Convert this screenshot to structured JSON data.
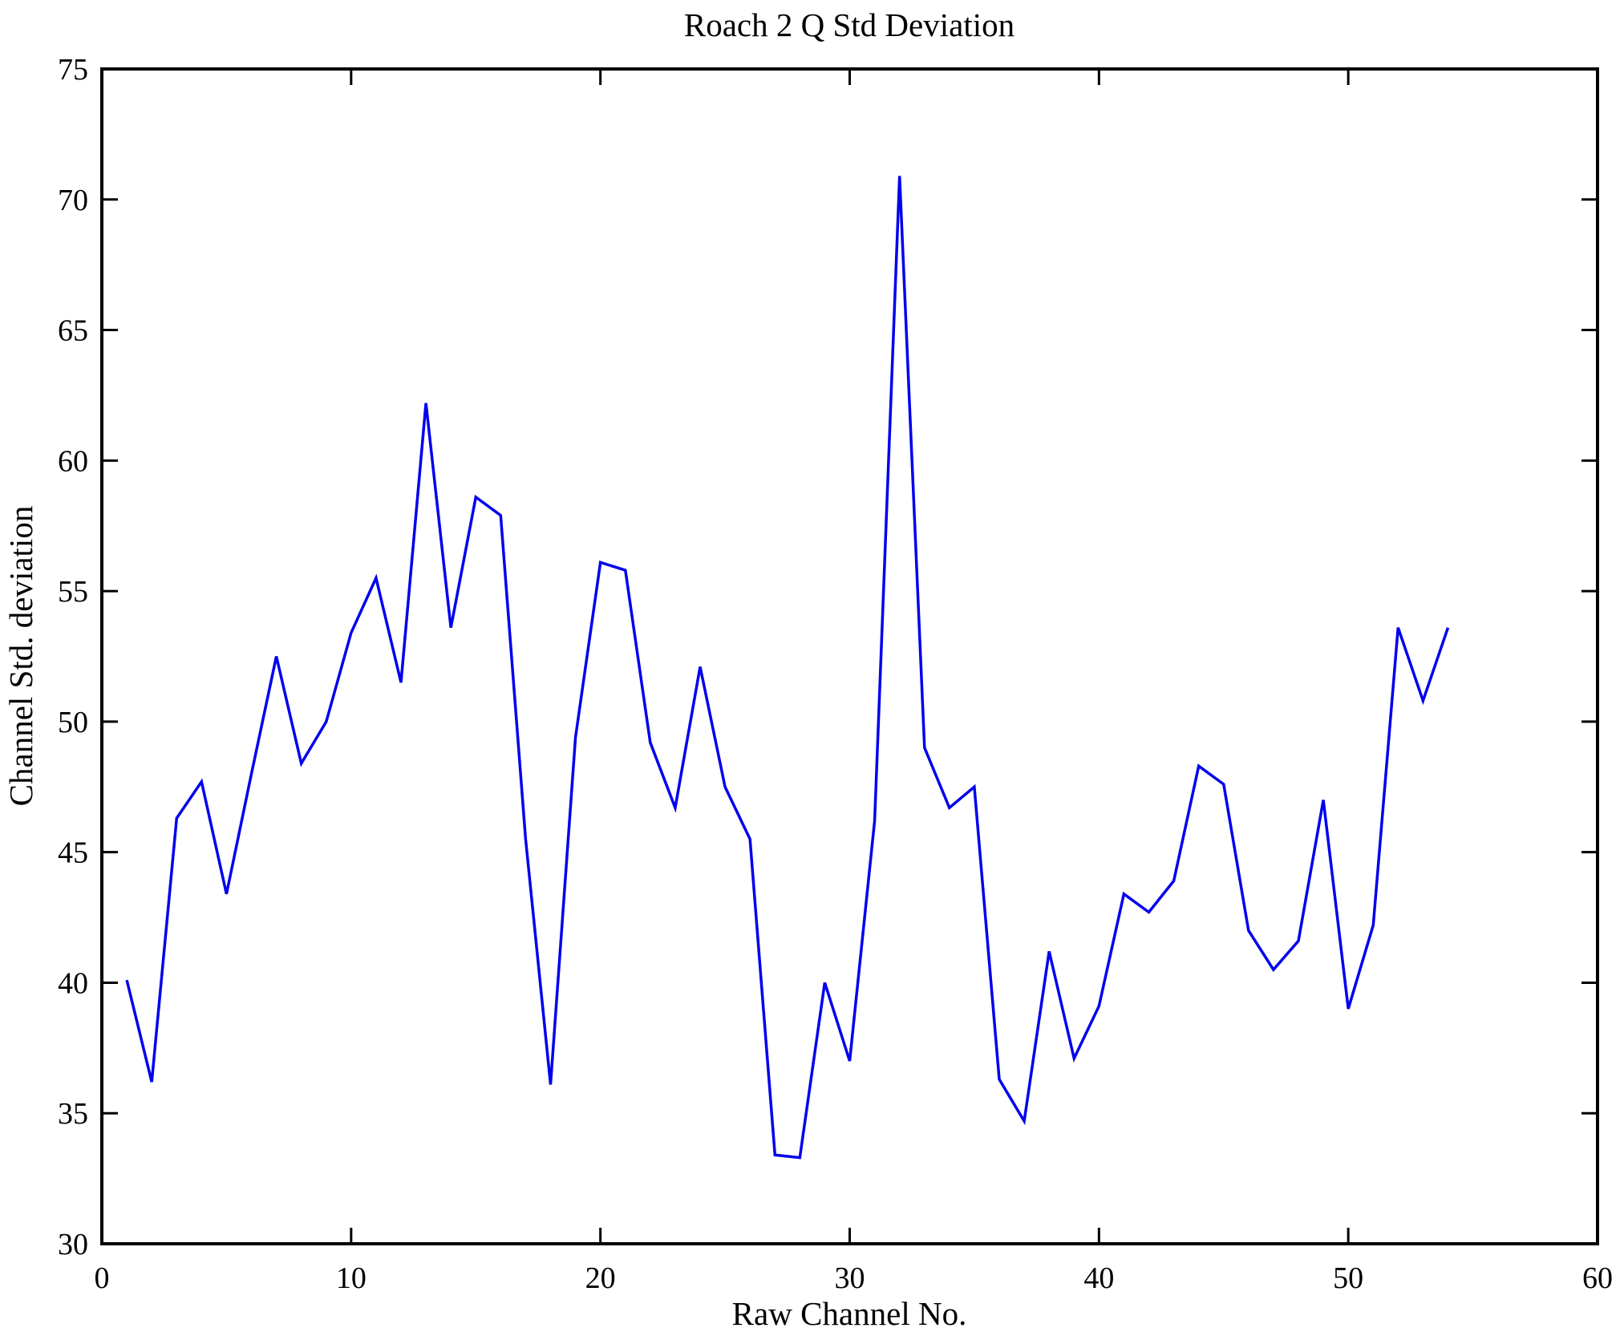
{
  "figure": {
    "background": "#ffffff",
    "text_color": "#000000"
  },
  "chart_data": {
    "type": "line",
    "title": "Roach 2 Q Std Deviation",
    "xlabel": "Raw Channel No.",
    "ylabel": "Channel Std. deviation",
    "xlim": [
      0,
      60
    ],
    "ylim": [
      30,
      75
    ],
    "x_ticks": [
      0,
      10,
      20,
      30,
      40,
      50,
      60
    ],
    "y_ticks": [
      30,
      35,
      40,
      45,
      50,
      55,
      60,
      65,
      70,
      75
    ],
    "grid": false,
    "legend": null,
    "line_color": "#0000EE",
    "axis_color": "#000000",
    "x": [
      1,
      2,
      3,
      4,
      5,
      6,
      7,
      8,
      9,
      10,
      11,
      12,
      13,
      14,
      15,
      16,
      17,
      18,
      19,
      20,
      21,
      22,
      23,
      24,
      25,
      26,
      27,
      28,
      29,
      30,
      31,
      32,
      33,
      34,
      35,
      36,
      37,
      38,
      39,
      40,
      41,
      42,
      43,
      44,
      45,
      46,
      47,
      48,
      49,
      50,
      51,
      52,
      53,
      54
    ],
    "values": [
      40.1,
      36.2,
      46.3,
      47.7,
      43.4,
      48.0,
      52.5,
      48.4,
      50.0,
      53.4,
      55.5,
      51.5,
      62.2,
      53.6,
      58.6,
      57.9,
      45.5,
      36.1,
      49.4,
      56.1,
      55.8,
      49.2,
      46.7,
      52.1,
      47.5,
      45.5,
      33.4,
      33.3,
      40.0,
      37.0,
      46.2,
      70.9,
      49.0,
      46.7,
      47.5,
      36.3,
      34.7,
      41.2,
      37.1,
      39.1,
      43.4,
      42.7,
      43.9,
      48.3,
      47.6,
      42.0,
      40.5,
      41.6,
      47.0,
      39.0,
      42.2,
      53.6,
      50.8,
      53.6
    ]
  }
}
